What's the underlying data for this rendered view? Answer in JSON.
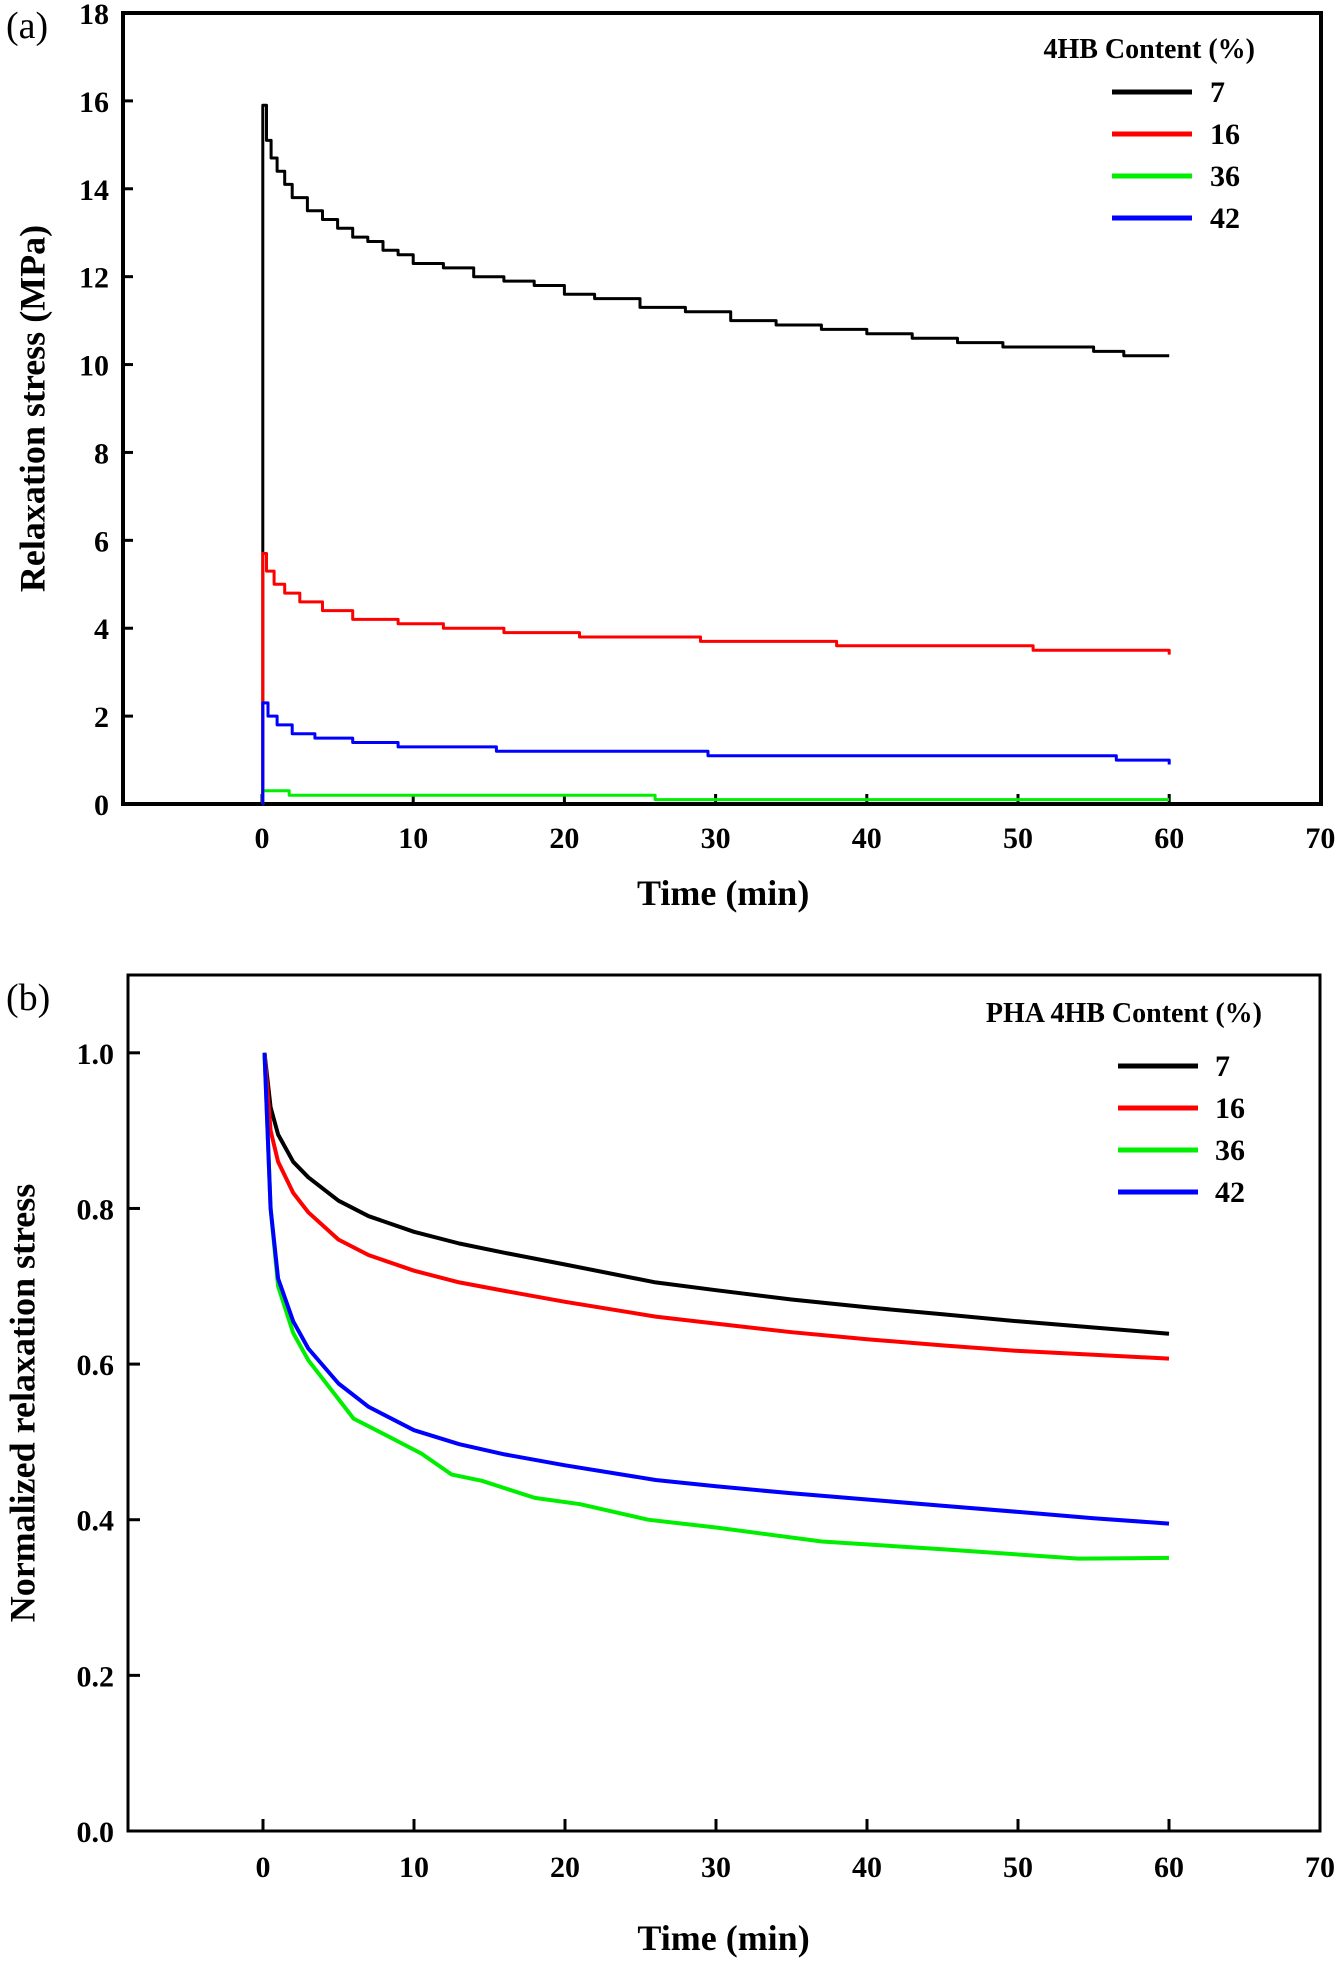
{
  "chart_data": [
    {
      "type": "line",
      "panel_label": "(a)",
      "title": "",
      "xlabel": "Time (min)",
      "ylabel": "Relaxation stress (MPa)",
      "xlim": [
        -9.2,
        70
      ],
      "ylim": [
        0,
        18
      ],
      "xticks": [
        0,
        10,
        20,
        30,
        40,
        50,
        60,
        70
      ],
      "yticks": [
        0,
        2,
        4,
        6,
        8,
        10,
        12,
        14,
        16,
        18
      ],
      "grid": false,
      "step": true,
      "legend": {
        "title": "4HB Content (%)",
        "position": "top-right"
      },
      "series": [
        {
          "name": "7",
          "color": "#000000",
          "x": [
            0,
            0.05,
            0.3,
            0.6,
            1,
            1.5,
            2,
            3,
            4,
            5,
            6,
            7,
            8,
            9,
            10,
            12,
            14,
            16,
            18,
            20,
            22,
            25,
            28,
            31,
            34,
            37,
            40,
            43,
            46,
            49,
            52,
            55,
            57,
            60
          ],
          "y": [
            0,
            15.9,
            15.1,
            14.7,
            14.4,
            14.1,
            13.8,
            13.5,
            13.3,
            13.1,
            12.9,
            12.8,
            12.6,
            12.5,
            12.3,
            12.2,
            12.0,
            11.9,
            11.8,
            11.6,
            11.5,
            11.3,
            11.2,
            11.0,
            10.9,
            10.8,
            10.7,
            10.6,
            10.5,
            10.4,
            10.4,
            10.3,
            10.2,
            10.2
          ]
        },
        {
          "name": "16",
          "color": "#ff0000",
          "x": [
            0,
            0.05,
            0.3,
            0.8,
            1.5,
            2.5,
            4,
            6,
            9,
            12,
            16,
            21,
            29,
            38,
            51,
            60
          ],
          "y": [
            0,
            5.7,
            5.3,
            5.0,
            4.8,
            4.6,
            4.4,
            4.2,
            4.1,
            4.0,
            3.9,
            3.8,
            3.7,
            3.6,
            3.5,
            3.4
          ]
        },
        {
          "name": "36",
          "color": "#00ee00",
          "x": [
            0,
            0.05,
            1.8,
            26,
            60
          ],
          "y": [
            0,
            0.3,
            0.2,
            0.1,
            0.1
          ]
        },
        {
          "name": "42",
          "color": "#0000ff",
          "x": [
            0,
            0.05,
            0.4,
            1,
            2,
            3.5,
            6,
            9,
            15.5,
            29.5,
            56.5,
            60
          ],
          "y": [
            0,
            2.3,
            2.0,
            1.8,
            1.6,
            1.5,
            1.4,
            1.3,
            1.2,
            1.1,
            1.0,
            0.9
          ]
        }
      ]
    },
    {
      "type": "line",
      "panel_label": "(b)",
      "title": "",
      "xlabel": "Time (min)",
      "ylabel": "Normalized relaxation stress",
      "xlim": [
        -9.2,
        70
      ],
      "ylim": [
        0,
        1.1
      ],
      "xticks": [
        0,
        10,
        20,
        30,
        40,
        50,
        60,
        70
      ],
      "yticks": [
        0.0,
        0.2,
        0.4,
        0.6,
        0.8,
        1.0
      ],
      "ytick_labels": [
        "0.0",
        "0.2",
        "0.4",
        "0.6",
        "0.8",
        "1.0"
      ],
      "grid": false,
      "step": false,
      "legend": {
        "title": "PHA 4HB Content (%)",
        "position": "top-right"
      },
      "series": [
        {
          "name": "7",
          "color": "#000000",
          "x": [
            0.1,
            0.5,
            1,
            2,
            3,
            5,
            7,
            10,
            13,
            16,
            20,
            26,
            30,
            35,
            40,
            45,
            50,
            55,
            60
          ],
          "y": [
            1.0,
            0.93,
            0.895,
            0.86,
            0.84,
            0.81,
            0.79,
            0.77,
            0.755,
            0.743,
            0.728,
            0.705,
            0.695,
            0.683,
            0.673,
            0.664,
            0.655,
            0.647,
            0.639
          ]
        },
        {
          "name": "16",
          "color": "#ff0000",
          "x": [
            0.1,
            0.5,
            1,
            2,
            3,
            5,
            7,
            10,
            13,
            16,
            20,
            26,
            30,
            35,
            40,
            45,
            50,
            55,
            60
          ],
          "y": [
            1.0,
            0.9,
            0.86,
            0.82,
            0.795,
            0.76,
            0.74,
            0.72,
            0.705,
            0.694,
            0.68,
            0.661,
            0.652,
            0.641,
            0.632,
            0.624,
            0.617,
            0.612,
            0.607
          ]
        },
        {
          "name": "36",
          "color": "#00ee00",
          "x": [
            0.1,
            0.5,
            1,
            2,
            3,
            4,
            5,
            6,
            8.5,
            10.5,
            12.5,
            14.5,
            18,
            21,
            25.5,
            30,
            37,
            45,
            54,
            60
          ],
          "y": [
            1.0,
            0.8,
            0.7,
            0.64,
            0.605,
            0.58,
            0.555,
            0.53,
            0.505,
            0.485,
            0.458,
            0.45,
            0.428,
            0.42,
            0.4,
            0.39,
            0.372,
            0.362,
            0.35,
            0.351
          ]
        },
        {
          "name": "42",
          "color": "#0000ff",
          "x": [
            0.1,
            0.5,
            1,
            2,
            3,
            5,
            7,
            10,
            13,
            16,
            20,
            26,
            30,
            35,
            40,
            45,
            50,
            55,
            60
          ],
          "y": [
            1.0,
            0.8,
            0.71,
            0.655,
            0.62,
            0.575,
            0.545,
            0.515,
            0.497,
            0.484,
            0.47,
            0.451,
            0.443,
            0.434,
            0.426,
            0.418,
            0.41,
            0.402,
            0.395
          ]
        }
      ]
    }
  ]
}
